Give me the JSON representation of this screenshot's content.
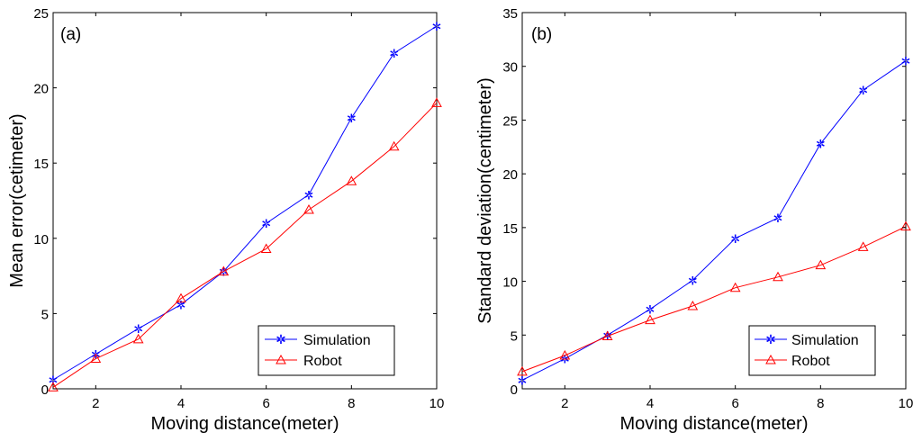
{
  "chart_data": [
    {
      "type": "line",
      "panel_label": "(a)",
      "xlabel": "Moving distance(meter)",
      "ylabel": "Mean error(cetimeter)",
      "xlim": [
        1,
        10
      ],
      "ylim": [
        0,
        25
      ],
      "xticks": [
        2,
        4,
        6,
        8,
        10
      ],
      "yticks": [
        0,
        5,
        10,
        15,
        20,
        25
      ],
      "grid": false,
      "legend_position": "bottom-right",
      "x": [
        1,
        2,
        3,
        4,
        5,
        6,
        7,
        8,
        9,
        10
      ],
      "series": [
        {
          "name": "Simulation",
          "color": "#0000ff",
          "marker": "star",
          "values": [
            0.6,
            2.3,
            4.0,
            5.6,
            7.8,
            11.0,
            12.9,
            18.0,
            22.3,
            24.1
          ]
        },
        {
          "name": "Robot",
          "color": "#ff0000",
          "marker": "triangle",
          "values": [
            0.1,
            2.0,
            3.3,
            6.0,
            7.8,
            9.3,
            11.9,
            13.8,
            16.1,
            19.0
          ]
        }
      ]
    },
    {
      "type": "line",
      "panel_label": "(b)",
      "xlabel": "Moving distance(meter)",
      "ylabel": "Standard deviation(centimeter)",
      "xlim": [
        1,
        10
      ],
      "ylim": [
        0,
        35
      ],
      "xticks": [
        2,
        4,
        6,
        8,
        10
      ],
      "yticks": [
        0,
        5,
        10,
        15,
        20,
        25,
        30,
        35
      ],
      "grid": false,
      "legend_position": "bottom-right",
      "x": [
        1,
        2,
        3,
        4,
        5,
        6,
        7,
        8,
        9,
        10
      ],
      "series": [
        {
          "name": "Simulation",
          "color": "#0000ff",
          "marker": "star",
          "values": [
            0.8,
            2.8,
            5.0,
            7.4,
            10.1,
            14.0,
            15.9,
            22.8,
            27.8,
            30.5
          ]
        },
        {
          "name": "Robot",
          "color": "#ff0000",
          "marker": "triangle",
          "values": [
            1.6,
            3.1,
            4.9,
            6.4,
            7.7,
            9.4,
            10.4,
            11.5,
            13.2,
            15.1
          ]
        }
      ]
    }
  ]
}
